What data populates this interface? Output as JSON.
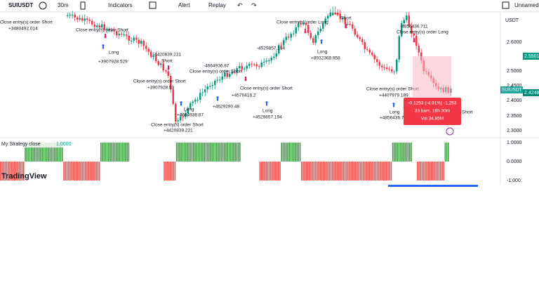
{
  "toolbar": {
    "symbol": "SUIUSDT",
    "interval": "30m",
    "indicators": "Indicators",
    "alert": "Alert",
    "replay": "Replay",
    "layout": "Unnamed"
  },
  "price_axis": {
    "currency": "USDT",
    "labels": [
      "2.6000",
      "2.5000",
      "2.4500",
      "2.4000",
      "2.3500",
      "2.3000"
    ],
    "last_high": "2.5501",
    "last_price": "2.4248",
    "symbol_tag": "SUIUSDT"
  },
  "annotations": [
    "Close entry(s) order Short",
    "+3480492.014",
    "Close entry(s) order Short",
    "Long",
    "+3907928.529",
    "-4420839.221",
    "Short",
    "Close entry(s) order Short",
    "+3907928.53",
    "Long",
    "+4664936.87",
    "Close entry(s) order Short",
    "+4420839.221",
    "-4664936.87",
    "Close entry(s) order Short",
    "+4629290.48",
    "+4570416.2",
    "Close entry(s) order Short",
    "-4529857.194",
    "Long",
    "+4529857.194",
    "Close entry(s) order Long",
    "Long",
    "+8932369.958",
    "Short",
    "Close entry(s) order Short",
    "+4407979.189",
    "Long",
    "+4856436.7",
    "-4856436.711",
    "Close entry(s) order Long",
    "Short"
  ],
  "measure": {
    "change": "-0.1253 (-4.91%) -1,253",
    "bars": "33 bars, 16h 30m",
    "volume": "Vol 34.85M"
  },
  "indicator": {
    "name": "My Strategy close",
    "value": "1.0000",
    "axis": [
      "1.0000",
      "0.0000",
      "-1.000"
    ]
  },
  "logo": "TradingView"
}
